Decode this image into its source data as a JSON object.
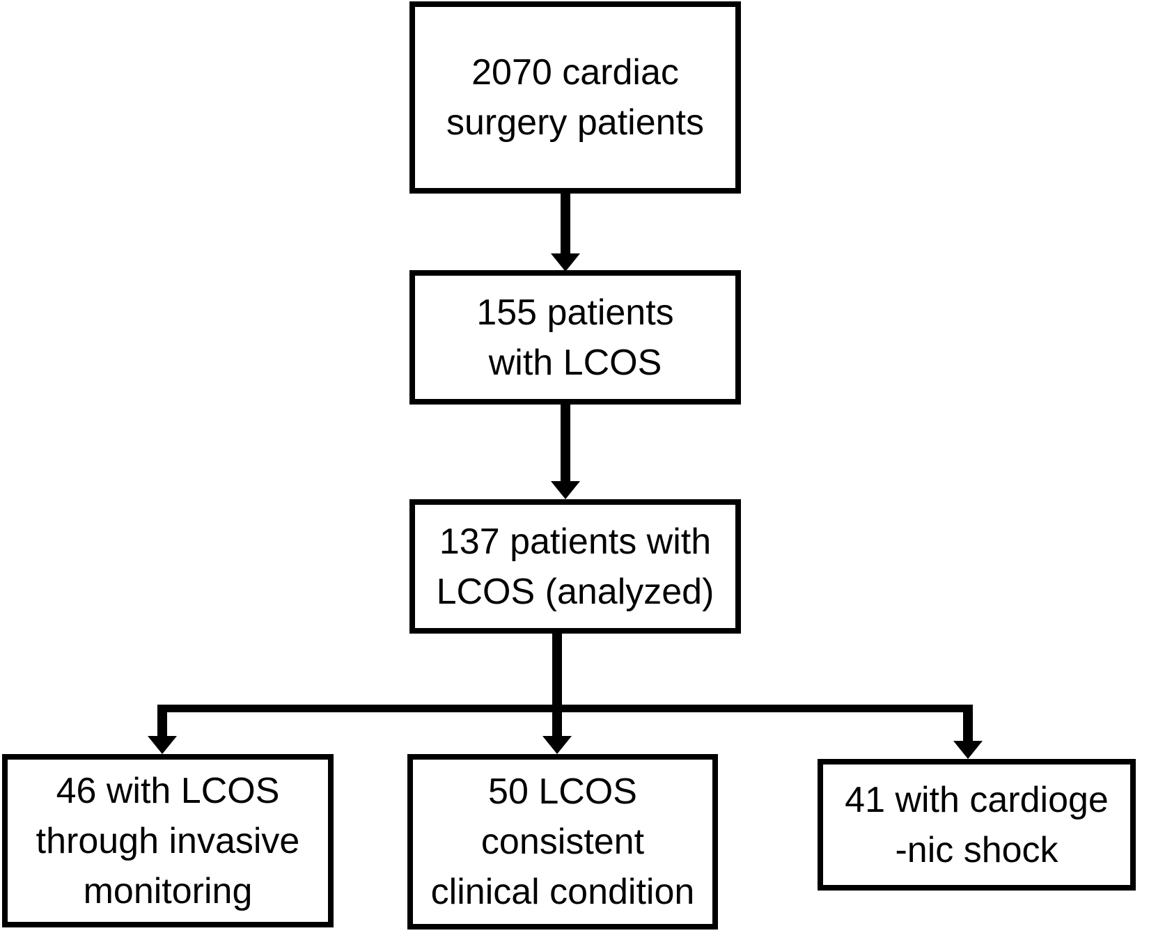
{
  "diagram": {
    "background_color": "#ffffff",
    "line_color": "#000000",
    "text_color": "#000000",
    "nodes": [
      {
        "id": "cardiac-surgery-total",
        "lines": [
          "2070 cardiac",
          "surgery patients"
        ]
      },
      {
        "id": "lcos-155",
        "lines": [
          "155 patients",
          "with LCOS"
        ]
      },
      {
        "id": "lcos-analyzed-137",
        "lines": [
          "137 patients with",
          "LCOS (analyzed)"
        ]
      },
      {
        "id": "invasive-monitoring-46",
        "lines": [
          "46 with LCOS",
          "through invasive",
          "monitoring"
        ]
      },
      {
        "id": "clinical-condition-50",
        "lines": [
          "50 LCOS",
          "consistent",
          "clinical condition"
        ]
      },
      {
        "id": "cardiogenic-shock-41",
        "lines": [
          "41 with cardioge",
          "-nic shock"
        ]
      }
    ]
  }
}
